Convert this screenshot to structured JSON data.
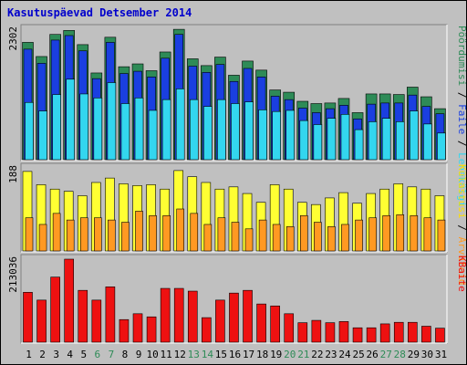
{
  "chart_data": {
    "type": "bar",
    "title": "Kasutuspäevad Detsember 2014",
    "categories": [
      "1",
      "2",
      "3",
      "4",
      "5",
      "6",
      "7",
      "8",
      "9",
      "10",
      "11",
      "12",
      "13",
      "14",
      "15",
      "16",
      "17",
      "18",
      "19",
      "20",
      "21",
      "22",
      "23",
      "24",
      "25",
      "26",
      "27",
      "28",
      "29",
      "30",
      "31"
    ],
    "weekend_days": [
      "6",
      "7",
      "13",
      "14",
      "20",
      "21",
      "27",
      "28"
    ],
    "colors": {
      "pageviews": "#2e8b57",
      "files": "#1a3fe0",
      "hits": "#33d6ef",
      "visits": "#ffff33",
      "sites": "#ff9922",
      "kbytes": "#ee1111",
      "title": "#0000cc",
      "weekend_label": "#2e8b57",
      "weekday_label": "#000000"
    },
    "panels": [
      {
        "id": "top",
        "ymax_label": "2302",
        "ymax": 2302,
        "right_label_parts": [
          {
            "text": "Pöördumisi",
            "color": "#2e8b57"
          },
          {
            "text": " / ",
            "color": "#000000"
          },
          {
            "text": "Faile",
            "color": "#1a3fe0"
          },
          {
            "text": " / ",
            "color": "#000000"
          },
          {
            "text": "Lehekülgi",
            "color": "#33d6ef"
          }
        ],
        "series": [
          {
            "name": "Pöördumisi",
            "values": [
              2070,
              1820,
              2210,
              2280,
              2030,
              1530,
              2160,
              1640,
              1690,
              1570,
              1900,
              2300,
              1780,
              1660,
              1810,
              1490,
              1740,
              1580,
              1230,
              1190,
              1030,
              990,
              1000,
              1080,
              830,
              1160,
              1160,
              1150,
              1280,
              1110,
              900
            ]
          },
          {
            "name": "Faile",
            "values": [
              1950,
              1700,
              2110,
              2190,
              1920,
              1430,
              2070,
              1520,
              1560,
              1460,
              1790,
              2210,
              1650,
              1540,
              1680,
              1380,
              1610,
              1460,
              1120,
              1060,
              910,
              830,
              900,
              960,
              720,
              980,
              1000,
              1000,
              1140,
              940,
              810
            ]
          },
          {
            "name": "Lehekülgi",
            "values": [
              1010,
              860,
              1150,
              1420,
              1160,
              1090,
              1360,
              990,
              1090,
              870,
              1060,
              1250,
              1060,
              940,
              1060,
              990,
              1020,
              880,
              850,
              870,
              690,
              620,
              730,
              800,
              530,
              670,
              730,
              670,
              860,
              630,
              470
            ]
          }
        ]
      },
      {
        "id": "mid",
        "ymax_label": "188",
        "ymax": 188,
        "right_label_parts": [
          {
            "text": "Külastusi",
            "color": "#ffdd00"
          },
          {
            "text": " / ",
            "color": "#000000"
          },
          {
            "text": "Arvuteid",
            "color": "#ff9922"
          }
        ],
        "series": [
          {
            "name": "Külastusi",
            "values": [
              180,
              150,
              140,
              135,
              125,
              155,
              165,
              152,
              148,
              150,
              140,
              182,
              168,
              155,
              140,
              145,
              130,
              110,
              150,
              140,
              110,
              105,
              120,
              132,
              108,
              130,
              140,
              152,
              145,
              140,
              125
            ]
          },
          {
            "name": "Arvuteid",
            "values": [
              75,
              60,
              85,
              70,
              75,
              75,
              70,
              65,
              90,
              80,
              80,
              95,
              85,
              60,
              75,
              65,
              50,
              70,
              60,
              55,
              80,
              65,
              55,
              60,
              70,
              75,
              80,
              82,
              80,
              75,
              70
            ]
          }
        ]
      },
      {
        "id": "bottom",
        "ymax_label": "213036",
        "ymax": 213036,
        "right_label_parts": [
          {
            "text": "KBaite",
            "color": "#ee1111"
          }
        ],
        "series": [
          {
            "name": "KBaite",
            "values": [
              128000,
              108000,
              167000,
              213036,
              133000,
              108000,
              142000,
              58000,
              73000,
              65000,
              138000,
              138000,
              131000,
              63000,
              108000,
              126000,
              133000,
              98000,
              93000,
              73000,
              50000,
              56000,
              50000,
              53000,
              37000,
              37000,
              47000,
              51000,
              51000,
              41000,
              36000
            ]
          }
        ]
      }
    ]
  }
}
